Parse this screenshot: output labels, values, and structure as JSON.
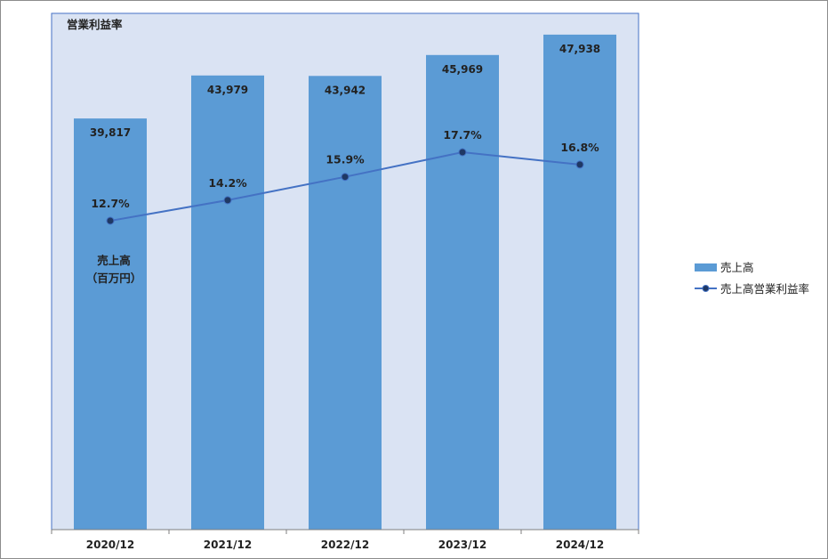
{
  "chart_data": {
    "type": "bar",
    "categories": [
      "2020/12",
      "2021/12",
      "2022/12",
      "2023/12",
      "2024/12"
    ],
    "series": [
      {
        "name": "売上高",
        "type": "bar",
        "values": [
          39817,
          43979,
          43942,
          45969,
          47938
        ],
        "labels": [
          "39,817",
          "43,979",
          "43,942",
          "45,969",
          "47,938"
        ],
        "color": "#5b9bd5"
      },
      {
        "name": "売上高営業利益率",
        "type": "line",
        "values": [
          12.7,
          14.2,
          15.9,
          17.7,
          16.8
        ],
        "labels": [
          "12.7%",
          "14.2%",
          "15.9%",
          "17.7%",
          "16.8%"
        ],
        "color": "#4472c4",
        "marker_color": "#1f3864"
      }
    ],
    "annotations": {
      "line_axis_title": "営業利益率",
      "bar_axis_title_line1": "売上高",
      "bar_axis_title_line2": "（百万円）"
    },
    "legend": {
      "position": "right"
    },
    "plot_background": "#dae3f3",
    "grid": false
  }
}
